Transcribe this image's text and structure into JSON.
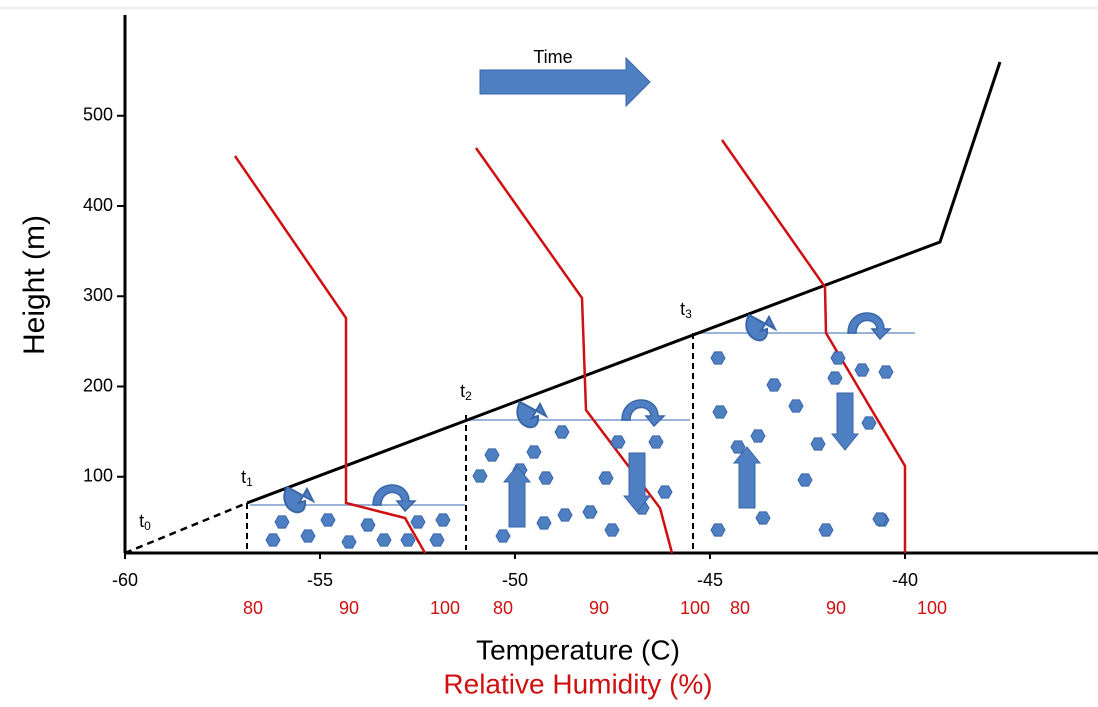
{
  "time_label": "Time",
  "y_axis": {
    "label": "Height (m)",
    "ticks": [
      100,
      200,
      300,
      400,
      500
    ]
  },
  "x_axis": {
    "label": "Temperature (C)",
    "ticks": [
      -60,
      -55,
      -50,
      -45,
      -40
    ]
  },
  "rh_axis": {
    "label": "Relative Humidity (%)",
    "groups": [
      [
        80,
        90,
        100
      ],
      [
        80,
        90,
        100
      ],
      [
        80,
        90,
        100
      ]
    ]
  },
  "t_labels": [
    {
      "base": "t",
      "sub": "0"
    },
    {
      "base": "t",
      "sub": "1"
    },
    {
      "base": "t",
      "sub": "2"
    },
    {
      "base": "t",
      "sub": "3"
    }
  ]
}
